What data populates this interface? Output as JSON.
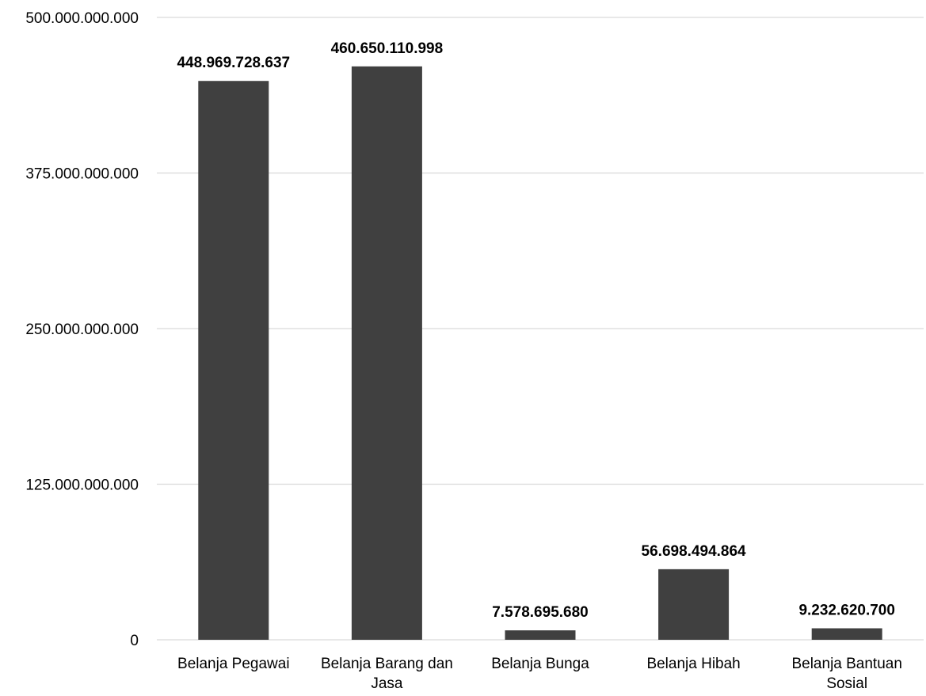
{
  "chart_data": {
    "type": "bar",
    "title": "",
    "xlabel": "",
    "ylabel": "",
    "categories": [
      [
        "Belanja Pegawai"
      ],
      [
        "Belanja Barang dan",
        "Jasa"
      ],
      [
        "Belanja Bunga"
      ],
      [
        "Belanja Hibah"
      ],
      [
        "Belanja Bantuan",
        "Sosial"
      ]
    ],
    "values": [
      448969728637,
      460650110998,
      7578695680,
      56698494864,
      9232620700
    ],
    "data_labels": [
      "448.969.728.637",
      "460.650.110.998",
      "7.578.695.680",
      "56.698.494.864",
      "9.232.620.700"
    ],
    "ylim": [
      0,
      500000000000
    ],
    "yticks": [
      0,
      125000000000,
      250000000000,
      375000000000,
      500000000000
    ],
    "ytick_labels": [
      "0",
      "125.000.000.000",
      "250.000.000.000",
      "375.000.000.000",
      "500.000.000.000"
    ],
    "grid": true,
    "legend": "none",
    "bar_color": "#404040",
    "grid_color": "#d9d9d9"
  }
}
